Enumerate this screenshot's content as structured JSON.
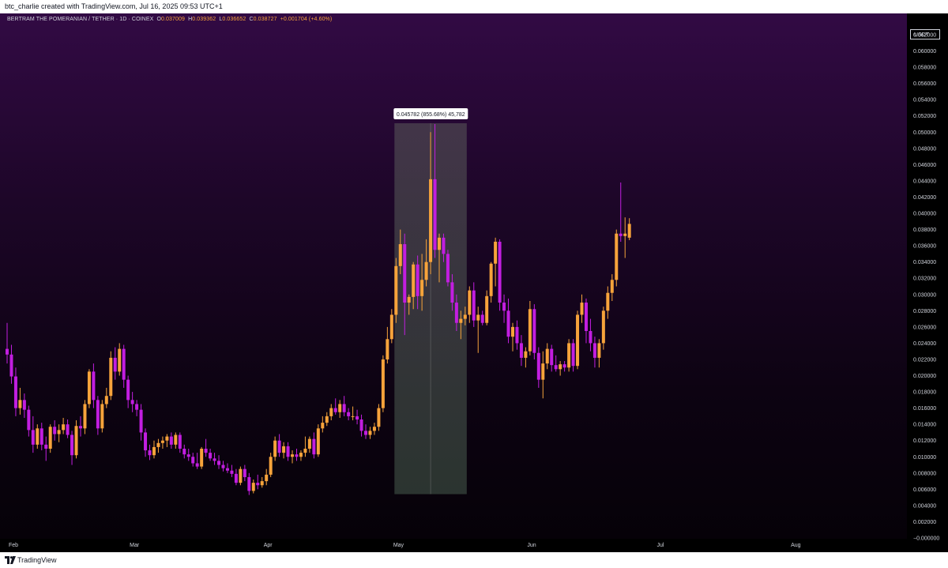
{
  "top_caption": "btc_charlie created with TradingView.com, Jul 16, 2025 09:53 UTC+1",
  "footer_brand": "TradingView",
  "legend": {
    "symbol": "BERTRAM THE POMERANIAN / TETHER · 1D · COINEX",
    "o_label": "O",
    "o_value": "0.037009",
    "h_label": "H",
    "h_value": "0.039362",
    "l_label": "L",
    "l_value": "0.036652",
    "c_label": "C",
    "c_value": "0.038727",
    "change": "+0.001704 (+4.60%)"
  },
  "currency": "USDT",
  "measure_label": "0.045782 (855.68%) 45,782",
  "colors": {
    "up": "#f7a33b",
    "down": "#c21ee0",
    "text": "#d1d4dc",
    "measure_fill": "#56705c"
  },
  "chart_data": {
    "type": "candlestick",
    "interval": "1D",
    "ylim": [
      0,
      0.062
    ],
    "y_ticks": [
      "0.062000",
      "0.060000",
      "0.058000",
      "0.056000",
      "0.054000",
      "0.052000",
      "0.050000",
      "0.048000",
      "0.046000",
      "0.044000",
      "0.042000",
      "0.040000",
      "0.038000",
      "0.036000",
      "0.034000",
      "0.032000",
      "0.030000",
      "0.028000",
      "0.026000",
      "0.024000",
      "0.022000",
      "0.020000",
      "0.018000",
      "0.016000",
      "0.014000",
      "0.012000",
      "0.010000",
      "0.008000",
      "0.006000",
      "0.004000",
      "0.002000",
      "−0.000000"
    ],
    "x_ticks": [
      {
        "label": "Feb",
        "day": 0
      },
      {
        "label": "Mar",
        "day": 28
      },
      {
        "label": "Apr",
        "day": 59
      },
      {
        "label": "May",
        "day": 89
      },
      {
        "label": "Jun",
        "day": 120
      },
      {
        "label": "Jul",
        "day": 150
      },
      {
        "label": "Aug",
        "day": 181
      }
    ],
    "measure": {
      "start_day": 90,
      "end_day": 106,
      "low": 0.0054,
      "high": 0.0511
    },
    "candles": [
      {
        "day": 0,
        "o": 0.0233,
        "h": 0.0265,
        "l": 0.0215,
        "c": 0.0226
      },
      {
        "day": 1,
        "o": 0.0226,
        "h": 0.0238,
        "l": 0.019,
        "c": 0.0199
      },
      {
        "day": 2,
        "o": 0.0199,
        "h": 0.021,
        "l": 0.015,
        "c": 0.016
      },
      {
        "day": 3,
        "o": 0.016,
        "h": 0.0185,
        "l": 0.0152,
        "c": 0.017
      },
      {
        "day": 4,
        "o": 0.017,
        "h": 0.0178,
        "l": 0.0148,
        "c": 0.0158
      },
      {
        "day": 5,
        "o": 0.0158,
        "h": 0.0163,
        "l": 0.0125,
        "c": 0.0133
      },
      {
        "day": 6,
        "o": 0.0133,
        "h": 0.015,
        "l": 0.0105,
        "c": 0.0115
      },
      {
        "day": 7,
        "o": 0.0115,
        "h": 0.014,
        "l": 0.011,
        "c": 0.0135
      },
      {
        "day": 8,
        "o": 0.0135,
        "h": 0.0142,
        "l": 0.0108,
        "c": 0.0115
      },
      {
        "day": 9,
        "o": 0.0115,
        "h": 0.0125,
        "l": 0.0095,
        "c": 0.011
      },
      {
        "day": 10,
        "o": 0.011,
        "h": 0.014,
        "l": 0.0105,
        "c": 0.0137
      },
      {
        "day": 11,
        "o": 0.0137,
        "h": 0.0145,
        "l": 0.012,
        "c": 0.0128
      },
      {
        "day": 12,
        "o": 0.0128,
        "h": 0.014,
        "l": 0.0118,
        "c": 0.0133
      },
      {
        "day": 13,
        "o": 0.0133,
        "h": 0.0148,
        "l": 0.0128,
        "c": 0.014
      },
      {
        "day": 14,
        "o": 0.014,
        "h": 0.0146,
        "l": 0.0123,
        "c": 0.0127
      },
      {
        "day": 15,
        "o": 0.0127,
        "h": 0.0132,
        "l": 0.009,
        "c": 0.0102
      },
      {
        "day": 16,
        "o": 0.0102,
        "h": 0.0145,
        "l": 0.0098,
        "c": 0.0138
      },
      {
        "day": 17,
        "o": 0.0138,
        "h": 0.015,
        "l": 0.0125,
        "c": 0.0135
      },
      {
        "day": 18,
        "o": 0.0135,
        "h": 0.017,
        "l": 0.0128,
        "c": 0.0165
      },
      {
        "day": 19,
        "o": 0.0165,
        "h": 0.0208,
        "l": 0.016,
        "c": 0.0205
      },
      {
        "day": 20,
        "o": 0.0205,
        "h": 0.0215,
        "l": 0.016,
        "c": 0.017
      },
      {
        "day": 21,
        "o": 0.017,
        "h": 0.0175,
        "l": 0.0127,
        "c": 0.0135
      },
      {
        "day": 22,
        "o": 0.0135,
        "h": 0.017,
        "l": 0.013,
        "c": 0.0165
      },
      {
        "day": 23,
        "o": 0.0165,
        "h": 0.0185,
        "l": 0.016,
        "c": 0.0175
      },
      {
        "day": 24,
        "o": 0.0175,
        "h": 0.023,
        "l": 0.017,
        "c": 0.0222
      },
      {
        "day": 25,
        "o": 0.0222,
        "h": 0.0235,
        "l": 0.0195,
        "c": 0.0205
      },
      {
        "day": 26,
        "o": 0.0205,
        "h": 0.024,
        "l": 0.02,
        "c": 0.0233
      },
      {
        "day": 27,
        "o": 0.0233,
        "h": 0.0238,
        "l": 0.0185,
        "c": 0.0195
      },
      {
        "day": 28,
        "o": 0.0195,
        "h": 0.02,
        "l": 0.016,
        "c": 0.017
      },
      {
        "day": 29,
        "o": 0.017,
        "h": 0.018,
        "l": 0.0155,
        "c": 0.0165
      },
      {
        "day": 30,
        "o": 0.0165,
        "h": 0.017,
        "l": 0.015,
        "c": 0.0158
      },
      {
        "day": 31,
        "o": 0.0158,
        "h": 0.0165,
        "l": 0.012,
        "c": 0.013
      },
      {
        "day": 32,
        "o": 0.013,
        "h": 0.0135,
        "l": 0.01,
        "c": 0.0108
      },
      {
        "day": 33,
        "o": 0.0108,
        "h": 0.0115,
        "l": 0.0096,
        "c": 0.0102
      },
      {
        "day": 34,
        "o": 0.0102,
        "h": 0.012,
        "l": 0.0098,
        "c": 0.0112
      },
      {
        "day": 35,
        "o": 0.0112,
        "h": 0.0122,
        "l": 0.0105,
        "c": 0.0117
      },
      {
        "day": 36,
        "o": 0.0117,
        "h": 0.0125,
        "l": 0.011,
        "c": 0.012
      },
      {
        "day": 37,
        "o": 0.012,
        "h": 0.0128,
        "l": 0.0112,
        "c": 0.0125
      },
      {
        "day": 38,
        "o": 0.0125,
        "h": 0.013,
        "l": 0.011,
        "c": 0.0115
      },
      {
        "day": 39,
        "o": 0.0115,
        "h": 0.013,
        "l": 0.011,
        "c": 0.0127
      },
      {
        "day": 40,
        "o": 0.0127,
        "h": 0.013,
        "l": 0.0105,
        "c": 0.011
      },
      {
        "day": 41,
        "o": 0.011,
        "h": 0.0115,
        "l": 0.0098,
        "c": 0.0103
      },
      {
        "day": 42,
        "o": 0.0103,
        "h": 0.011,
        "l": 0.0095,
        "c": 0.01
      },
      {
        "day": 43,
        "o": 0.01,
        "h": 0.0105,
        "l": 0.0088,
        "c": 0.0092
      },
      {
        "day": 44,
        "o": 0.0092,
        "h": 0.0105,
        "l": 0.0085,
        "c": 0.0088
      },
      {
        "day": 45,
        "o": 0.0088,
        "h": 0.0112,
        "l": 0.0085,
        "c": 0.011
      },
      {
        "day": 46,
        "o": 0.011,
        "h": 0.0122,
        "l": 0.01,
        "c": 0.0105
      },
      {
        "day": 47,
        "o": 0.0105,
        "h": 0.011,
        "l": 0.0095,
        "c": 0.0098
      },
      {
        "day": 48,
        "o": 0.0098,
        "h": 0.0105,
        "l": 0.009,
        "c": 0.0095
      },
      {
        "day": 49,
        "o": 0.0095,
        "h": 0.0102,
        "l": 0.0085,
        "c": 0.009
      },
      {
        "day": 50,
        "o": 0.009,
        "h": 0.0095,
        "l": 0.0082,
        "c": 0.0086
      },
      {
        "day": 51,
        "o": 0.0086,
        "h": 0.0092,
        "l": 0.008,
        "c": 0.0083
      },
      {
        "day": 52,
        "o": 0.0083,
        "h": 0.009,
        "l": 0.0075,
        "c": 0.0079
      },
      {
        "day": 53,
        "o": 0.0079,
        "h": 0.0085,
        "l": 0.0065,
        "c": 0.0068
      },
      {
        "day": 54,
        "o": 0.0068,
        "h": 0.0088,
        "l": 0.0065,
        "c": 0.0085
      },
      {
        "day": 55,
        "o": 0.0085,
        "h": 0.009,
        "l": 0.007,
        "c": 0.0075
      },
      {
        "day": 56,
        "o": 0.0075,
        "h": 0.008,
        "l": 0.0053,
        "c": 0.0058
      },
      {
        "day": 57,
        "o": 0.0058,
        "h": 0.0072,
        "l": 0.0055,
        "c": 0.0068
      },
      {
        "day": 58,
        "o": 0.0068,
        "h": 0.0078,
        "l": 0.006,
        "c": 0.0065
      },
      {
        "day": 59,
        "o": 0.0065,
        "h": 0.0075,
        "l": 0.0062,
        "c": 0.007
      },
      {
        "day": 60,
        "o": 0.007,
        "h": 0.0085,
        "l": 0.0065,
        "c": 0.0078
      },
      {
        "day": 61,
        "o": 0.0078,
        "h": 0.0105,
        "l": 0.0075,
        "c": 0.01
      },
      {
        "day": 62,
        "o": 0.01,
        "h": 0.0125,
        "l": 0.0095,
        "c": 0.012
      },
      {
        "day": 63,
        "o": 0.012,
        "h": 0.0128,
        "l": 0.01,
        "c": 0.0105
      },
      {
        "day": 64,
        "o": 0.0105,
        "h": 0.0118,
        "l": 0.0098,
        "c": 0.0113
      },
      {
        "day": 65,
        "o": 0.0113,
        "h": 0.0118,
        "l": 0.0095,
        "c": 0.01
      },
      {
        "day": 66,
        "o": 0.01,
        "h": 0.0108,
        "l": 0.0092,
        "c": 0.0103
      },
      {
        "day": 67,
        "o": 0.0103,
        "h": 0.011,
        "l": 0.0095,
        "c": 0.01
      },
      {
        "day": 68,
        "o": 0.01,
        "h": 0.0108,
        "l": 0.0095,
        "c": 0.0105
      },
      {
        "day": 69,
        "o": 0.0105,
        "h": 0.0125,
        "l": 0.01,
        "c": 0.011
      },
      {
        "day": 70,
        "o": 0.011,
        "h": 0.0125,
        "l": 0.0105,
        "c": 0.0122
      },
      {
        "day": 71,
        "o": 0.0122,
        "h": 0.013,
        "l": 0.0098,
        "c": 0.0103
      },
      {
        "day": 72,
        "o": 0.0103,
        "h": 0.014,
        "l": 0.01,
        "c": 0.0135
      },
      {
        "day": 73,
        "o": 0.0135,
        "h": 0.015,
        "l": 0.013,
        "c": 0.0142
      },
      {
        "day": 74,
        "o": 0.0142,
        "h": 0.0155,
        "l": 0.0138,
        "c": 0.015
      },
      {
        "day": 75,
        "o": 0.015,
        "h": 0.0165,
        "l": 0.0145,
        "c": 0.016
      },
      {
        "day": 76,
        "o": 0.016,
        "h": 0.0172,
        "l": 0.0152,
        "c": 0.0155
      },
      {
        "day": 77,
        "o": 0.0155,
        "h": 0.017,
        "l": 0.0148,
        "c": 0.0165
      },
      {
        "day": 78,
        "o": 0.0165,
        "h": 0.0175,
        "l": 0.015,
        "c": 0.0155
      },
      {
        "day": 79,
        "o": 0.0155,
        "h": 0.016,
        "l": 0.0145,
        "c": 0.015
      },
      {
        "day": 80,
        "o": 0.015,
        "h": 0.0162,
        "l": 0.0145,
        "c": 0.015
      },
      {
        "day": 81,
        "o": 0.015,
        "h": 0.0158,
        "l": 0.014,
        "c": 0.0146
      },
      {
        "day": 82,
        "o": 0.0146,
        "h": 0.0152,
        "l": 0.0125,
        "c": 0.0132
      },
      {
        "day": 83,
        "o": 0.0132,
        "h": 0.014,
        "l": 0.0122,
        "c": 0.0127
      },
      {
        "day": 84,
        "o": 0.0127,
        "h": 0.0137,
        "l": 0.0122,
        "c": 0.0132
      },
      {
        "day": 85,
        "o": 0.0132,
        "h": 0.0142,
        "l": 0.0127,
        "c": 0.0137
      },
      {
        "day": 86,
        "o": 0.0137,
        "h": 0.0165,
        "l": 0.0132,
        "c": 0.016
      },
      {
        "day": 87,
        "o": 0.016,
        "h": 0.0225,
        "l": 0.0155,
        "c": 0.022
      },
      {
        "day": 88,
        "o": 0.022,
        "h": 0.026,
        "l": 0.0215,
        "c": 0.0245
      },
      {
        "day": 89,
        "o": 0.0245,
        "h": 0.0282,
        "l": 0.024,
        "c": 0.0275
      },
      {
        "day": 90,
        "o": 0.0275,
        "h": 0.0345,
        "l": 0.0265,
        "c": 0.0335
      },
      {
        "day": 91,
        "o": 0.0335,
        "h": 0.038,
        "l": 0.0325,
        "c": 0.0362
      },
      {
        "day": 92,
        "o": 0.0362,
        "h": 0.0375,
        "l": 0.025,
        "c": 0.029
      },
      {
        "day": 93,
        "o": 0.029,
        "h": 0.03,
        "l": 0.0275,
        "c": 0.0297
      },
      {
        "day": 94,
        "o": 0.0297,
        "h": 0.034,
        "l": 0.0282,
        "c": 0.0337
      },
      {
        "day": 95,
        "o": 0.0337,
        "h": 0.0348,
        "l": 0.0282,
        "c": 0.0298
      },
      {
        "day": 96,
        "o": 0.0298,
        "h": 0.035,
        "l": 0.028,
        "c": 0.0318
      },
      {
        "day": 97,
        "o": 0.0318,
        "h": 0.0368,
        "l": 0.031,
        "c": 0.034
      },
      {
        "day": 98,
        "o": 0.034,
        "h": 0.05,
        "l": 0.0325,
        "c": 0.0442
      },
      {
        "day": 99,
        "o": 0.0442,
        "h": 0.051,
        "l": 0.0345,
        "c": 0.0355
      },
      {
        "day": 100,
        "o": 0.0355,
        "h": 0.0375,
        "l": 0.0315,
        "c": 0.037
      },
      {
        "day": 101,
        "o": 0.037,
        "h": 0.0375,
        "l": 0.034,
        "c": 0.035
      },
      {
        "day": 102,
        "o": 0.035,
        "h": 0.0355,
        "l": 0.031,
        "c": 0.0315
      },
      {
        "day": 103,
        "o": 0.0315,
        "h": 0.0325,
        "l": 0.028,
        "c": 0.029
      },
      {
        "day": 104,
        "o": 0.029,
        "h": 0.03,
        "l": 0.0255,
        "c": 0.0265
      },
      {
        "day": 105,
        "o": 0.0265,
        "h": 0.028,
        "l": 0.0245,
        "c": 0.027
      },
      {
        "day": 106,
        "o": 0.027,
        "h": 0.0285,
        "l": 0.0262,
        "c": 0.0275
      },
      {
        "day": 107,
        "o": 0.0275,
        "h": 0.031,
        "l": 0.0265,
        "c": 0.0305
      },
      {
        "day": 108,
        "o": 0.0305,
        "h": 0.0315,
        "l": 0.026,
        "c": 0.0268
      },
      {
        "day": 109,
        "o": 0.0268,
        "h": 0.0285,
        "l": 0.0228,
        "c": 0.0275
      },
      {
        "day": 110,
        "o": 0.0275,
        "h": 0.028,
        "l": 0.0262,
        "c": 0.0265
      },
      {
        "day": 111,
        "o": 0.0265,
        "h": 0.0305,
        "l": 0.0262,
        "c": 0.0298
      },
      {
        "day": 112,
        "o": 0.0298,
        "h": 0.034,
        "l": 0.029,
        "c": 0.0338
      },
      {
        "day": 113,
        "o": 0.0338,
        "h": 0.037,
        "l": 0.031,
        "c": 0.0365
      },
      {
        "day": 114,
        "o": 0.0365,
        "h": 0.0368,
        "l": 0.028,
        "c": 0.029
      },
      {
        "day": 115,
        "o": 0.029,
        "h": 0.03,
        "l": 0.0265,
        "c": 0.028
      },
      {
        "day": 116,
        "o": 0.028,
        "h": 0.0295,
        "l": 0.024,
        "c": 0.0248
      },
      {
        "day": 117,
        "o": 0.0248,
        "h": 0.0265,
        "l": 0.023,
        "c": 0.026
      },
      {
        "day": 118,
        "o": 0.026,
        "h": 0.0268,
        "l": 0.0232,
        "c": 0.024
      },
      {
        "day": 119,
        "o": 0.024,
        "h": 0.025,
        "l": 0.0212,
        "c": 0.0222
      },
      {
        "day": 120,
        "o": 0.0222,
        "h": 0.0235,
        "l": 0.021,
        "c": 0.023
      },
      {
        "day": 121,
        "o": 0.023,
        "h": 0.0292,
        "l": 0.0225,
        "c": 0.0282
      },
      {
        "day": 122,
        "o": 0.0282,
        "h": 0.0288,
        "l": 0.022,
        "c": 0.0228
      },
      {
        "day": 123,
        "o": 0.0228,
        "h": 0.0235,
        "l": 0.0185,
        "c": 0.0195
      },
      {
        "day": 124,
        "o": 0.0195,
        "h": 0.023,
        "l": 0.0172,
        "c": 0.0215
      },
      {
        "day": 125,
        "o": 0.0215,
        "h": 0.024,
        "l": 0.0208,
        "c": 0.0233
      },
      {
        "day": 126,
        "o": 0.0233,
        "h": 0.0238,
        "l": 0.0205,
        "c": 0.0213
      },
      {
        "day": 127,
        "o": 0.0213,
        "h": 0.0225,
        "l": 0.0205,
        "c": 0.0208
      },
      {
        "day": 128,
        "o": 0.0208,
        "h": 0.0218,
        "l": 0.02,
        "c": 0.0214
      },
      {
        "day": 129,
        "o": 0.0214,
        "h": 0.0218,
        "l": 0.0205,
        "c": 0.021
      },
      {
        "day": 130,
        "o": 0.021,
        "h": 0.0245,
        "l": 0.0205,
        "c": 0.024
      },
      {
        "day": 131,
        "o": 0.024,
        "h": 0.0245,
        "l": 0.0205,
        "c": 0.0212
      },
      {
        "day": 132,
        "o": 0.0212,
        "h": 0.028,
        "l": 0.0208,
        "c": 0.0275
      },
      {
        "day": 133,
        "o": 0.0275,
        "h": 0.03,
        "l": 0.0265,
        "c": 0.029
      },
      {
        "day": 134,
        "o": 0.029,
        "h": 0.0295,
        "l": 0.024,
        "c": 0.0255
      },
      {
        "day": 135,
        "o": 0.0255,
        "h": 0.027,
        "l": 0.023,
        "c": 0.024
      },
      {
        "day": 136,
        "o": 0.024,
        "h": 0.0248,
        "l": 0.021,
        "c": 0.0222
      },
      {
        "day": 137,
        "o": 0.0222,
        "h": 0.0245,
        "l": 0.021,
        "c": 0.024
      },
      {
        "day": 138,
        "o": 0.024,
        "h": 0.0285,
        "l": 0.0232,
        "c": 0.028
      },
      {
        "day": 139,
        "o": 0.028,
        "h": 0.031,
        "l": 0.027,
        "c": 0.0302
      },
      {
        "day": 140,
        "o": 0.0302,
        "h": 0.0325,
        "l": 0.0292,
        "c": 0.0318
      },
      {
        "day": 141,
        "o": 0.0318,
        "h": 0.038,
        "l": 0.031,
        "c": 0.0375
      },
      {
        "day": 142,
        "o": 0.0375,
        "h": 0.0438,
        "l": 0.0365,
        "c": 0.0372
      },
      {
        "day": 143,
        "o": 0.0372,
        "h": 0.0395,
        "l": 0.0345,
        "c": 0.0375
      },
      {
        "day": 144,
        "o": 0.037,
        "h": 0.0394,
        "l": 0.0367,
        "c": 0.0387
      }
    ]
  }
}
